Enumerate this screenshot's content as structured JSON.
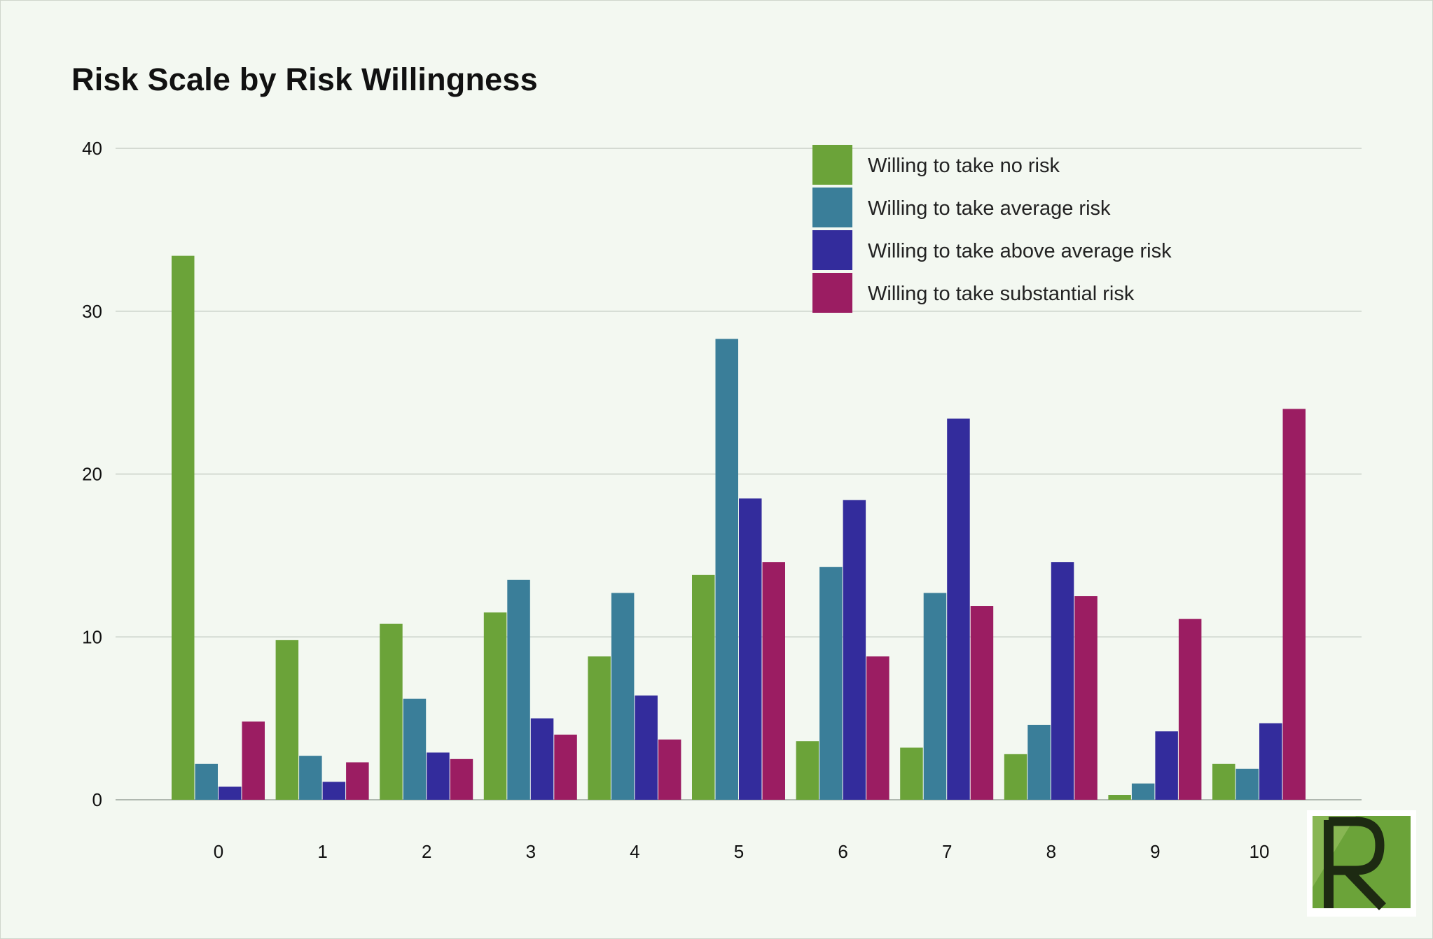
{
  "chart_data": {
    "type": "bar",
    "title": "Risk Scale by Risk Willingness",
    "xlabel": "",
    "ylabel": "",
    "ylim": [
      0,
      40
    ],
    "yticks": [
      0,
      10,
      20,
      30,
      40
    ],
    "grid": true,
    "legend_position": "top-right",
    "categories": [
      "0",
      "1",
      "2",
      "3",
      "4",
      "5",
      "6",
      "7",
      "8",
      "9",
      "10"
    ],
    "series": [
      {
        "name": "Willing to take no risk",
        "color": "#6ba339",
        "values": [
          33.4,
          9.8,
          10.8,
          11.5,
          8.8,
          13.8,
          3.6,
          3.2,
          2.8,
          0.3,
          2.2
        ]
      },
      {
        "name": "Willing to take average risk",
        "color": "#3a7e99",
        "values": [
          2.2,
          2.7,
          6.2,
          13.5,
          12.7,
          28.3,
          14.3,
          12.7,
          4.6,
          1.0,
          1.9
        ]
      },
      {
        "name": "Willing to take above average risk",
        "color": "#332c9c",
        "values": [
          0.8,
          1.1,
          2.9,
          5.0,
          6.4,
          18.5,
          18.4,
          23.4,
          14.6,
          4.2,
          4.7
        ]
      },
      {
        "name": "Willing to take substantial risk",
        "color": "#9b1d62",
        "values": [
          4.8,
          2.3,
          2.5,
          4.0,
          3.7,
          14.6,
          8.8,
          11.9,
          12.5,
          11.1,
          24.0
        ]
      }
    ]
  },
  "logo": {
    "letter": "R",
    "name": "logo"
  }
}
